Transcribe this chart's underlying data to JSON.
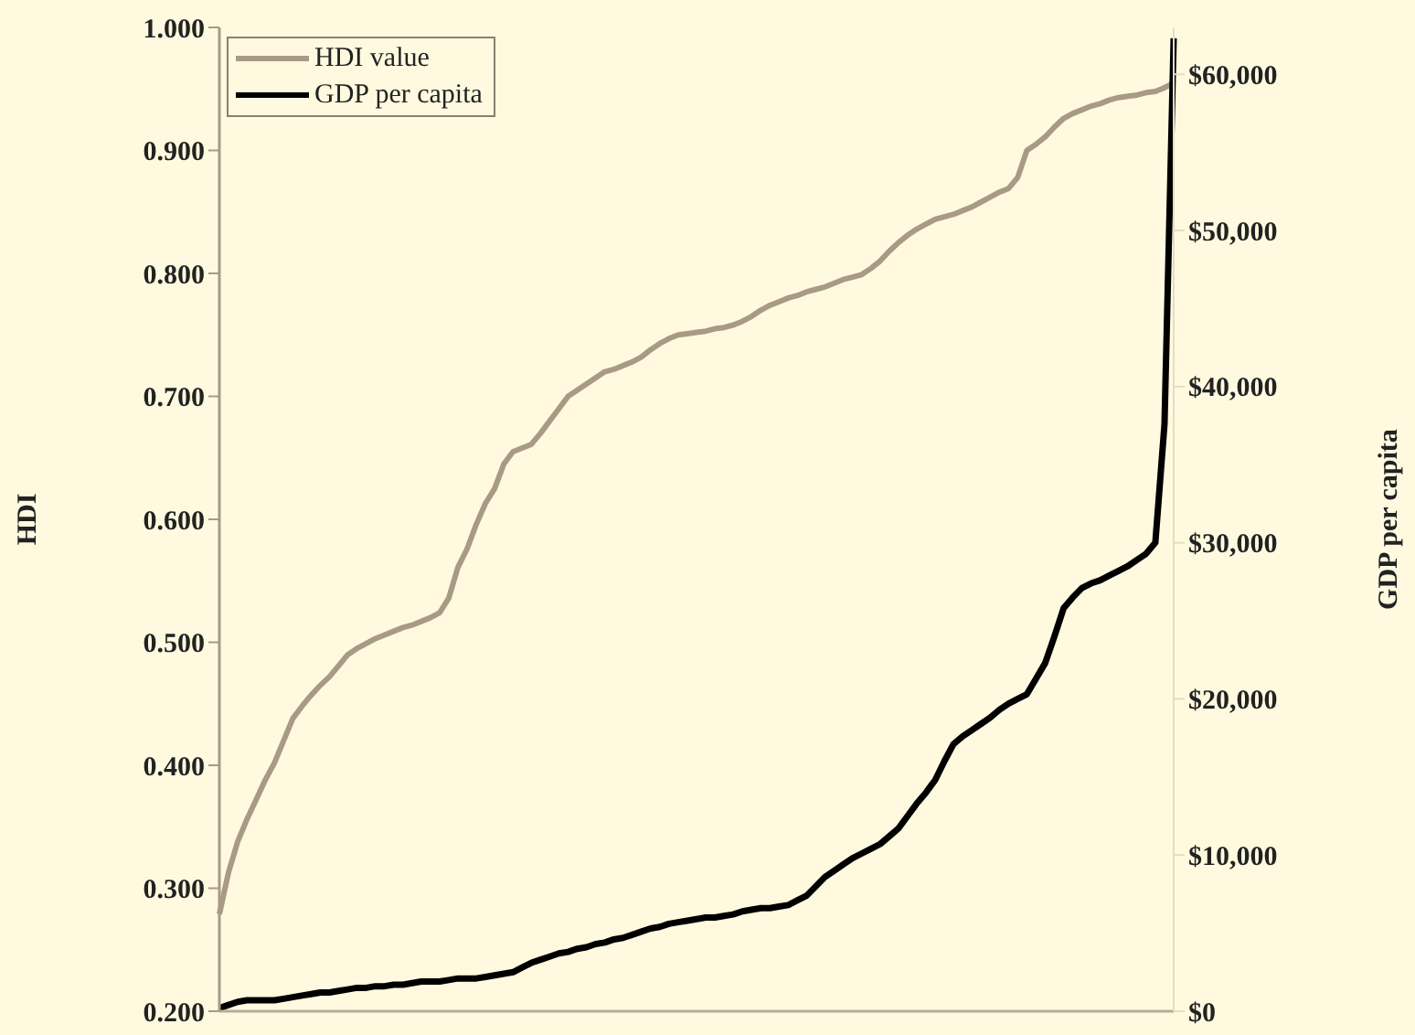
{
  "chart_data": {
    "type": "line",
    "ylabel": "HDI",
    "y2label": "GDP per capita",
    "categories": [
      null,
      null,
      null,
      null,
      null,
      null,
      null,
      null,
      null,
      null,
      null,
      null,
      null,
      null,
      null,
      null,
      null,
      null,
      null,
      null,
      null,
      null,
      null,
      null,
      null,
      null,
      null,
      null,
      null,
      null,
      null,
      null,
      null,
      null,
      null,
      null,
      null,
      null,
      null,
      null,
      null,
      null,
      null,
      null,
      null,
      null,
      null,
      null,
      null,
      null,
      null,
      null,
      null,
      null,
      null,
      null,
      null,
      null,
      null,
      null,
      null,
      null,
      null,
      null,
      null,
      null,
      null,
      null,
      null,
      null,
      null,
      null,
      null,
      null,
      null,
      null,
      null,
      null,
      null,
      null,
      null,
      null,
      null,
      null,
      null,
      null,
      null,
      null,
      null,
      null,
      null,
      null,
      null,
      null,
      null,
      null,
      null,
      null,
      null,
      null,
      null,
      null,
      null,
      null,
      null
    ],
    "series": [
      {
        "name": "HDI value",
        "color": "#a89a85",
        "values": [
          0.279,
          0.313,
          0.338,
          0.356,
          0.372,
          0.388,
          0.402,
          0.42,
          0.438,
          0.448,
          0.457,
          0.465,
          0.472,
          0.481,
          0.49,
          0.495,
          0.499,
          0.503,
          0.506,
          0.509,
          0.512,
          0.514,
          0.517,
          0.52,
          0.524,
          0.536,
          0.561,
          0.576,
          0.596,
          0.613,
          0.625,
          0.645,
          0.655,
          0.658,
          0.661,
          0.67,
          0.68,
          0.69,
          0.7,
          0.705,
          0.71,
          0.715,
          0.72,
          0.722,
          0.725,
          0.728,
          0.732,
          0.738,
          0.743,
          0.747,
          0.75,
          0.751,
          0.752,
          0.753,
          0.755,
          0.756,
          0.758,
          0.761,
          0.765,
          0.77,
          0.774,
          0.777,
          0.78,
          0.782,
          0.785,
          0.787,
          0.789,
          0.792,
          0.795,
          0.797,
          0.799,
          0.804,
          0.81,
          0.818,
          0.825,
          0.831,
          0.836,
          0.84,
          0.844,
          0.846,
          0.848,
          0.851,
          0.854,
          0.858,
          0.862,
          0.866,
          0.869,
          0.878,
          0.9,
          0.905,
          0.911,
          0.919,
          0.926,
          0.93,
          0.933,
          0.936,
          0.938,
          0.941,
          0.943,
          0.944,
          0.945,
          0.947,
          0.948,
          0.951,
          0.955
        ]
      },
      {
        "name": "GDP per capita",
        "color": "#000000",
        "axis": "y2",
        "values": [
          200,
          400,
          600,
          700,
          700,
          700,
          700,
          800,
          900,
          1000,
          1100,
          1200,
          1200,
          1300,
          1400,
          1500,
          1500,
          1600,
          1600,
          1700,
          1700,
          1800,
          1900,
          1900,
          1900,
          2000,
          2100,
          2100,
          2100,
          2200,
          2300,
          2400,
          2500,
          2800,
          3100,
          3300,
          3500,
          3700,
          3800,
          4000,
          4100,
          4300,
          4400,
          4600,
          4700,
          4900,
          5100,
          5300,
          5400,
          5600,
          5700,
          5800,
          5900,
          6000,
          6000,
          6100,
          6200,
          6400,
          6500,
          6600,
          6600,
          6700,
          6800,
          7100,
          7400,
          8000,
          8600,
          9000,
          9400,
          9800,
          10100,
          10400,
          10700,
          11200,
          11700,
          12500,
          13300,
          14000,
          14800,
          16000,
          17100,
          17600,
          18000,
          18400,
          18800,
          19300,
          19700,
          20000,
          20300,
          21300,
          22300,
          24000,
          25800,
          26500,
          27100,
          27400,
          27600,
          27900,
          28200,
          28500,
          28900,
          29300,
          30000,
          37600,
          62300
        ]
      }
    ],
    "ylim": [
      0.2,
      1.0
    ],
    "yticks": [
      {
        "value": 0.2,
        "label": "0.200"
      },
      {
        "value": 0.3,
        "label": "0.300"
      },
      {
        "value": 0.4,
        "label": "0.400"
      },
      {
        "value": 0.5,
        "label": "0.500"
      },
      {
        "value": 0.6,
        "label": "0.600"
      },
      {
        "value": 0.7,
        "label": "0.700"
      },
      {
        "value": 0.8,
        "label": "0.800"
      },
      {
        "value": 0.9,
        "label": "0.900"
      },
      {
        "value": 1.0,
        "label": "1.000"
      }
    ],
    "y2lim": [
      0,
      63000
    ],
    "y2ticks": [
      {
        "value": 0,
        "label": "$0"
      },
      {
        "value": 10000,
        "label": "$10,000"
      },
      {
        "value": 20000,
        "label": "$20,000"
      },
      {
        "value": 30000,
        "label": "$30,000"
      },
      {
        "value": 40000,
        "label": "$40,000"
      },
      {
        "value": 50000,
        "label": "$50,000"
      },
      {
        "value": 60000,
        "label": "$60,000"
      }
    ],
    "legend": "top left",
    "grid": false,
    "marker": "none",
    "line_style": "solid"
  }
}
